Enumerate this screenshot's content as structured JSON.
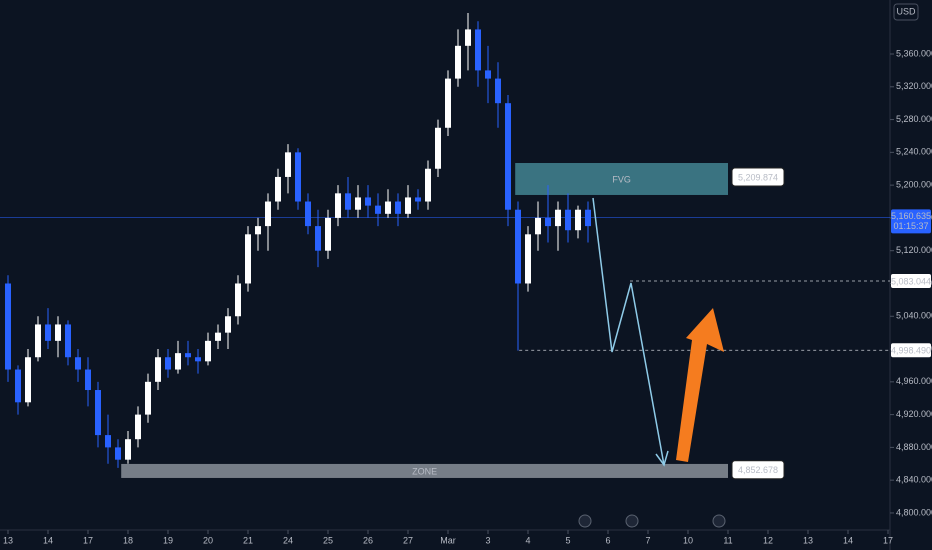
{
  "chart_data": {
    "type": "candlestick",
    "currency": "USD",
    "x": [
      0,
      0.25,
      0.5,
      0.75,
      1,
      1.25,
      1.5,
      1.75,
      2,
      2.25,
      2.5,
      2.75,
      3,
      3.25,
      3.5,
      3.75,
      4,
      4.25,
      4.5,
      4.75,
      5,
      5.25,
      5.5,
      5.75,
      6,
      6.25,
      6.5,
      6.75,
      7,
      7.25,
      7.5,
      7.75,
      8,
      8.25,
      8.5,
      8.75,
      9,
      9.25,
      9.5,
      9.75,
      10,
      10.25,
      10.5,
      10.75,
      11,
      11.25,
      11.5,
      11.75,
      12,
      12.25,
      12.5,
      12.75,
      13,
      13.25,
      13.5,
      13.75,
      14,
      14.25,
      14.5
    ],
    "open": [
      5080,
      4975,
      4935,
      4990,
      5030,
      5010,
      5030,
      4990,
      4975,
      4950,
      4895,
      4880,
      4865,
      4890,
      4920,
      4960,
      4990,
      4975,
      4995,
      4990,
      4985,
      5010,
      5020,
      5040,
      5080,
      5140,
      5150,
      5180,
      5210,
      5240,
      5180,
      5150,
      5120,
      5160,
      5190,
      5170,
      5185,
      5175,
      5165,
      5180,
      5165,
      5185,
      5180,
      5220,
      5270,
      5330,
      5370,
      5390,
      5340,
      5330,
      5300,
      5170,
      5080,
      5140,
      5160,
      5150,
      5170,
      5145,
      5170
    ],
    "high": [
      5090,
      4980,
      5000,
      5040,
      5050,
      5040,
      5035,
      5000,
      4990,
      4960,
      4920,
      4890,
      4900,
      4930,
      4970,
      5000,
      5000,
      5010,
      5010,
      5000,
      5020,
      5030,
      5050,
      5090,
      5150,
      5160,
      5190,
      5220,
      5250,
      5245,
      5190,
      5170,
      5170,
      5200,
      5210,
      5200,
      5200,
      5190,
      5195,
      5190,
      5200,
      5195,
      5230,
      5280,
      5340,
      5390,
      5410,
      5400,
      5370,
      5350,
      5310,
      5180,
      5150,
      5180,
      5200,
      5180,
      5190,
      5175,
      5180
    ],
    "low": [
      4960,
      4920,
      4930,
      4985,
      5000,
      4990,
      4980,
      4960,
      4930,
      4880,
      4860,
      4855,
      4860,
      4880,
      4910,
      4950,
      4965,
      4970,
      4980,
      4970,
      4980,
      5000,
      5000,
      5030,
      5070,
      5120,
      5120,
      5170,
      5190,
      5170,
      5140,
      5100,
      5110,
      5150,
      5160,
      5160,
      5160,
      5150,
      5160,
      5150,
      5160,
      5170,
      5170,
      5210,
      5260,
      5320,
      5340,
      5320,
      5300,
      5270,
      5150,
      4998,
      5070,
      5120,
      5130,
      5120,
      5130,
      5135,
      5130
    ],
    "close": [
      4975,
      4935,
      4990,
      5030,
      5010,
      5030,
      4990,
      4975,
      4950,
      4895,
      4880,
      4865,
      4890,
      4920,
      4960,
      4990,
      4975,
      4995,
      4990,
      4985,
      5010,
      5020,
      5040,
      5080,
      5140,
      5150,
      5180,
      5210,
      5240,
      5180,
      5150,
      5120,
      5160,
      5190,
      5170,
      5185,
      5175,
      5165,
      5180,
      5165,
      5185,
      5180,
      5220,
      5270,
      5330,
      5370,
      5390,
      5340,
      5330,
      5300,
      5170,
      5080,
      5140,
      5160,
      5150,
      5170,
      5145,
      5170,
      5150
    ],
    "up_color": "#ffffff",
    "down_color": "#2962ff",
    "xlim": [
      -0.2,
      22.05
    ],
    "ylim": [
      4779.2,
      5425.9
    ],
    "xticks": [
      {
        "value": 0,
        "label": "13"
      },
      {
        "value": 1,
        "label": "14"
      },
      {
        "value": 2,
        "label": "17"
      },
      {
        "value": 3,
        "label": "18"
      },
      {
        "value": 4,
        "label": "19"
      },
      {
        "value": 5,
        "label": "20"
      },
      {
        "value": 6,
        "label": "21"
      },
      {
        "value": 7,
        "label": "24"
      },
      {
        "value": 8,
        "label": "25"
      },
      {
        "value": 9,
        "label": "26"
      },
      {
        "value": 10,
        "label": "27"
      },
      {
        "value": 11,
        "label": "Mar"
      },
      {
        "value": 12,
        "label": "3"
      },
      {
        "value": 13,
        "label": "4"
      },
      {
        "value": 14,
        "label": "5"
      },
      {
        "value": 15,
        "label": "6"
      },
      {
        "value": 16,
        "label": "7"
      },
      {
        "value": 17,
        "label": "10"
      },
      {
        "value": 18,
        "label": "11"
      },
      {
        "value": 19,
        "label": "12"
      },
      {
        "value": 20,
        "label": "13"
      },
      {
        "value": 21,
        "label": "14"
      },
      {
        "value": 22,
        "label": "17"
      }
    ],
    "yticks": [
      {
        "value": 5360,
        "label": "5,360.000"
      },
      {
        "value": 5320,
        "label": "5,320.000"
      },
      {
        "value": 5280,
        "label": "5,280.000"
      },
      {
        "value": 5240,
        "label": "5,240.000"
      },
      {
        "value": 5200,
        "label": "5,200.000"
      },
      {
        "value": 5160,
        "label": "5,160.000"
      },
      {
        "value": 5120,
        "label": "5,120.000"
      },
      {
        "value": 5080,
        "label": "5,080.000"
      },
      {
        "value": 5040,
        "label": "5,040.000"
      },
      {
        "value": 5000,
        "label": "5,000.000"
      },
      {
        "value": 4960,
        "label": "4,960.000"
      },
      {
        "value": 4920,
        "label": "4,920.000"
      },
      {
        "value": 4880,
        "label": "4,880.000"
      },
      {
        "value": 4840,
        "label": "4,840.000"
      },
      {
        "value": 4800,
        "label": "4,800.000"
      }
    ],
    "fvg": {
      "label": "FVG",
      "x_start": 12.68,
      "x_end": 18,
      "top": 5227,
      "bottom": 5188,
      "price": {
        "value": 5209.874,
        "label": "5,209.874"
      }
    },
    "zone": {
      "label": "ZONE",
      "x_start": 2.83,
      "x_end": 18,
      "top": 4859.8,
      "bottom": 4842.7,
      "price": {
        "value": 4852.678,
        "label": "4,852.678"
      }
    },
    "levels": [
      {
        "x_start": 15.55,
        "price": {
          "value": 5083.044,
          "label": "5,083.044"
        }
      },
      {
        "x_start": 12.78,
        "price": {
          "value": 4998.49,
          "label": "4,998.490"
        }
      }
    ],
    "last_price": {
      "value": 5160.635,
      "label": "5,160.635"
    },
    "countdown": "01:15:37"
  }
}
